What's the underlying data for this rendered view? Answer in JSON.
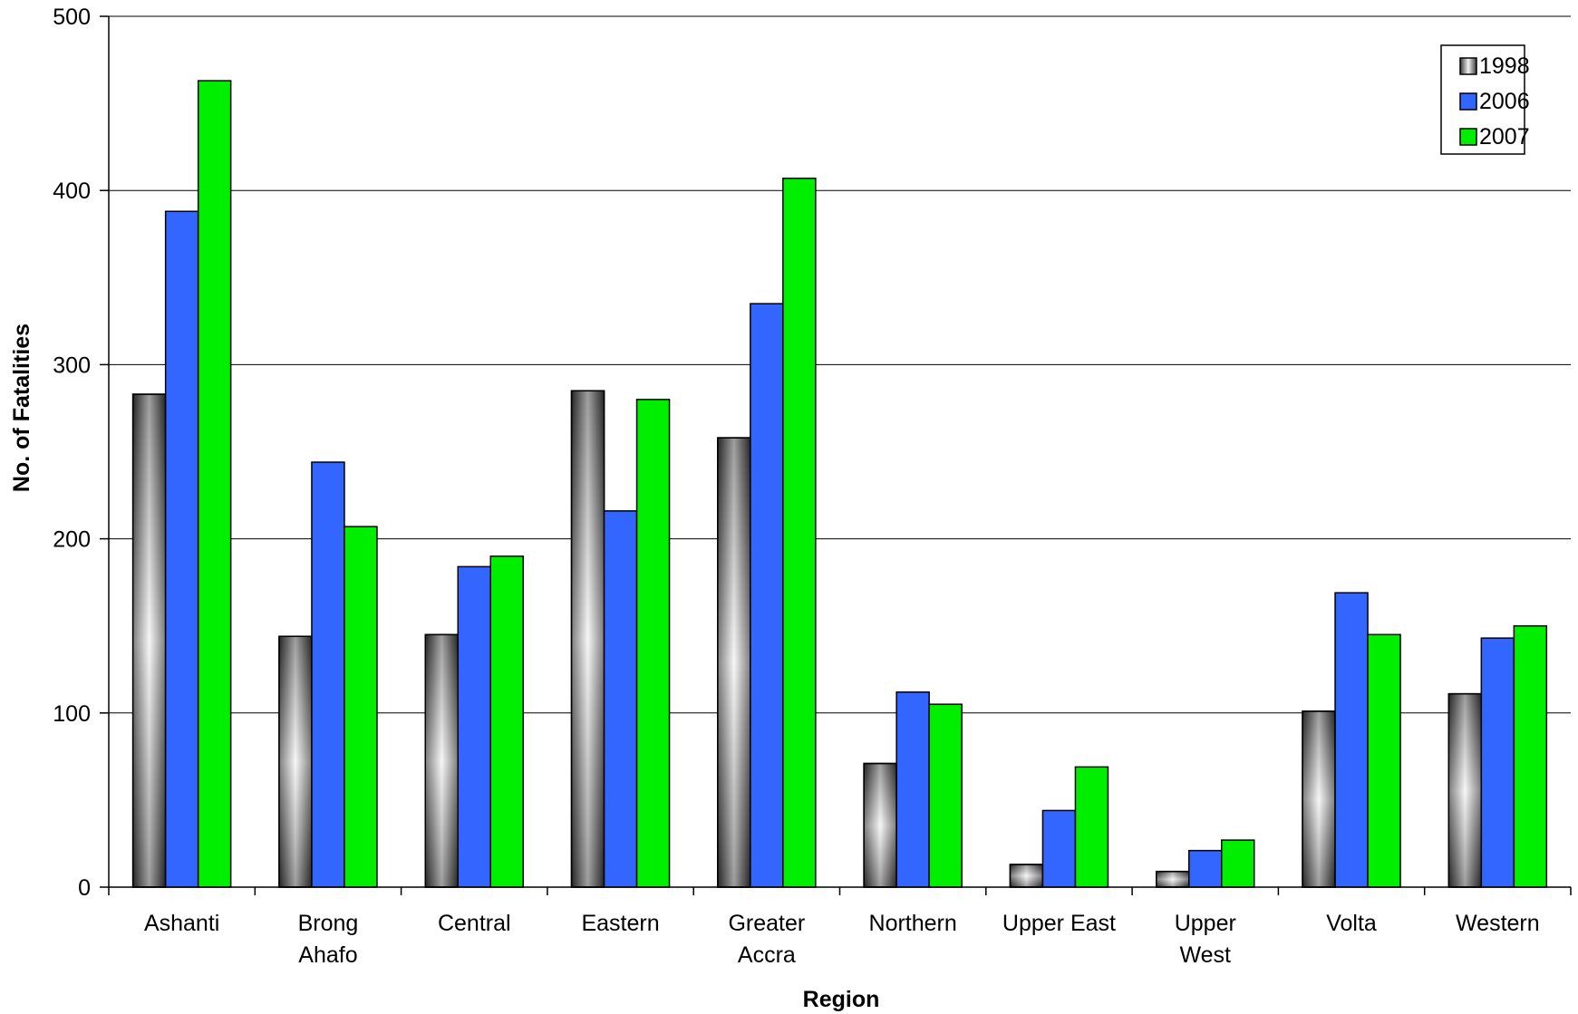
{
  "chart_data": {
    "type": "bar",
    "title": "",
    "xlabel": "Region",
    "ylabel": "No. of  Fatalities",
    "ylim": [
      0,
      500
    ],
    "yticks": [
      0,
      100,
      200,
      300,
      400,
      500
    ],
    "grid": true,
    "legend_position": "top-right",
    "categories": [
      [
        "Ashanti"
      ],
      [
        "Brong",
        "Ahafo"
      ],
      [
        "Central"
      ],
      [
        "Eastern"
      ],
      [
        "Greater",
        "Accra"
      ],
      [
        "Northern"
      ],
      [
        "Upper East"
      ],
      [
        "Upper",
        "West"
      ],
      [
        "Volta"
      ],
      [
        "Western"
      ]
    ],
    "series": [
      {
        "name": "1998",
        "color": "#555555",
        "values": [
          283,
          144,
          145,
          285,
          258,
          71,
          13,
          9,
          101,
          111
        ]
      },
      {
        "name": "2006",
        "color": "#3366FF",
        "values": [
          388,
          244,
          184,
          216,
          335,
          112,
          44,
          21,
          169,
          143
        ]
      },
      {
        "name": "2007",
        "color": "#00EE00",
        "values": [
          463,
          207,
          190,
          280,
          407,
          105,
          69,
          27,
          145,
          150
        ]
      }
    ]
  }
}
